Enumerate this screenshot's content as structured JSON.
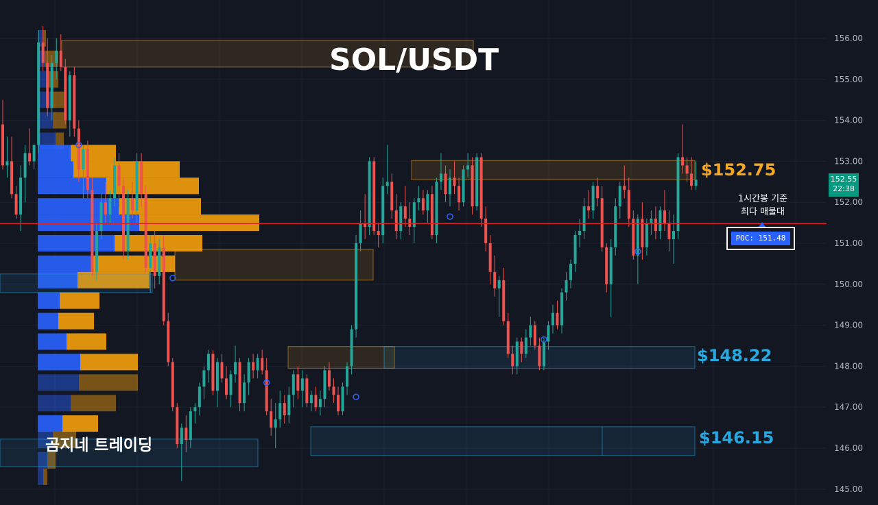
{
  "header": {
    "title": "SOL/USDT"
  },
  "watermark": "곰지네 트레이딩",
  "annotations": {
    "resistance_label": "$152.75",
    "support1_label": "$148.22",
    "support2_label": "$146.15",
    "note_line1": "1시간봉 기준",
    "note_line2": "최다 매물대",
    "poc_label": "POC: 151.48"
  },
  "price_tag": {
    "price": "152.55",
    "countdown": "22:38"
  },
  "colors": {
    "background": "#131722",
    "up": "#26a69a",
    "down": "#ef5350",
    "poc_line": "#e02020",
    "profile_buy": "#2962ff",
    "profile_sell": "#f59e0b",
    "level_orange": "#f5a623",
    "level_blue": "#29a8e0"
  },
  "chart_data": {
    "type": "candlestick",
    "title": "SOL/USDT",
    "timeframe": "1시간봉",
    "yaxis": {
      "position": "right",
      "ylim": [
        144.8,
        156.4
      ],
      "ticks": [
        "145.00",
        "146.00",
        "147.00",
        "148.00",
        "149.00",
        "150.00",
        "151.00",
        "152.00",
        "153.00",
        "154.00",
        "155.00",
        "156.00"
      ]
    },
    "grid": true,
    "current_price": 152.55,
    "poc": 151.48,
    "levels": [
      152.75,
      148.22,
      146.15
    ],
    "candles": [
      [
        153.9,
        154.5,
        152.8,
        152.9
      ],
      [
        152.9,
        153.6,
        152.6,
        153.0
      ],
      [
        153.0,
        153.6,
        152.1,
        152.2
      ],
      [
        152.2,
        152.4,
        151.6,
        151.7
      ],
      [
        151.7,
        152.9,
        151.3,
        152.6
      ],
      [
        152.6,
        153.4,
        152.0,
        153.2
      ],
      [
        153.2,
        153.8,
        152.9,
        153.0
      ],
      [
        153.0,
        153.4,
        152.8,
        153.4
      ],
      [
        153.4,
        156.2,
        153.2,
        155.9
      ],
      [
        155.9,
        156.3,
        155.2,
        155.4
      ],
      [
        155.4,
        156.0,
        154.1,
        154.3
      ],
      [
        154.3,
        155.6,
        154.0,
        155.4
      ],
      [
        155.4,
        156.0,
        155.0,
        155.7
      ],
      [
        155.7,
        156.1,
        155.2,
        155.3
      ],
      [
        155.3,
        155.5,
        153.9,
        154.0
      ],
      [
        154.0,
        155.2,
        153.6,
        155.1
      ],
      [
        155.1,
        155.3,
        153.6,
        153.8
      ],
      [
        153.8,
        154.0,
        152.5,
        152.8
      ],
      [
        152.8,
        153.4,
        152.1,
        153.3
      ],
      [
        153.3,
        153.5,
        152.1,
        152.3
      ],
      [
        152.3,
        152.6,
        150.2,
        150.3
      ],
      [
        150.3,
        151.5,
        150.1,
        151.3
      ],
      [
        151.3,
        152.2,
        151.1,
        152.0
      ],
      [
        152.0,
        152.5,
        151.5,
        151.7
      ],
      [
        151.7,
        152.3,
        151.5,
        152.1
      ],
      [
        152.1,
        153.1,
        151.9,
        152.9
      ],
      [
        152.9,
        153.2,
        151.9,
        152.4
      ],
      [
        152.4,
        152.6,
        150.6,
        150.8
      ],
      [
        150.8,
        152.3,
        150.6,
        152.1
      ],
      [
        152.1,
        152.5,
        151.6,
        151.8
      ],
      [
        151.8,
        153.2,
        151.5,
        153.0
      ],
      [
        153.0,
        153.2,
        151.9,
        152.2
      ],
      [
        152.2,
        152.4,
        150.3,
        150.4
      ],
      [
        150.4,
        151.2,
        149.8,
        151.0
      ],
      [
        151.0,
        151.3,
        149.9,
        150.2
      ],
      [
        150.2,
        151.1,
        150.0,
        150.9
      ],
      [
        150.9,
        151.2,
        149.0,
        149.1
      ],
      [
        149.1,
        149.3,
        148.0,
        148.1
      ],
      [
        148.1,
        148.2,
        146.9,
        147.0
      ],
      [
        147.0,
        147.1,
        146.0,
        146.1
      ],
      [
        146.1,
        146.6,
        145.2,
        146.5
      ],
      [
        146.5,
        146.8,
        145.9,
        146.2
      ],
      [
        146.2,
        147.0,
        146.0,
        146.9
      ],
      [
        146.9,
        147.1,
        146.6,
        147.0
      ],
      [
        147.0,
        147.6,
        146.8,
        147.5
      ],
      [
        147.5,
        148.0,
        147.2,
        147.9
      ],
      [
        147.9,
        148.4,
        147.6,
        148.3
      ],
      [
        148.3,
        148.4,
        147.3,
        147.4
      ],
      [
        147.4,
        148.2,
        147.0,
        148.1
      ],
      [
        148.1,
        148.3,
        147.6,
        147.7
      ],
      [
        147.7,
        148.0,
        147.2,
        147.3
      ],
      [
        147.3,
        147.9,
        147.0,
        147.8
      ],
      [
        147.8,
        148.5,
        147.6,
        148.1
      ],
      [
        148.1,
        148.2,
        146.9,
        147.1
      ],
      [
        147.1,
        147.8,
        146.9,
        147.6
      ],
      [
        147.6,
        148.2,
        147.3,
        148.1
      ],
      [
        148.1,
        148.3,
        147.7,
        147.9
      ],
      [
        147.9,
        148.3,
        147.7,
        148.2
      ],
      [
        148.2,
        148.4,
        147.8,
        147.9
      ],
      [
        147.9,
        148.2,
        146.8,
        146.9
      ],
      [
        146.9,
        147.2,
        146.3,
        146.5
      ],
      [
        146.5,
        147.1,
        146.0,
        146.7
      ],
      [
        146.7,
        147.4,
        146.5,
        147.1
      ],
      [
        147.1,
        147.3,
        146.6,
        146.8
      ],
      [
        146.8,
        147.5,
        146.6,
        147.3
      ],
      [
        147.3,
        147.9,
        147.0,
        147.8
      ],
      [
        147.8,
        148.0,
        147.2,
        147.4
      ],
      [
        147.4,
        147.9,
        147.0,
        147.7
      ],
      [
        147.7,
        147.8,
        147.0,
        147.1
      ],
      [
        147.1,
        147.4,
        146.9,
        147.3
      ],
      [
        147.3,
        147.5,
        146.9,
        147.0
      ],
      [
        147.0,
        147.4,
        146.8,
        147.2
      ],
      [
        147.2,
        148.0,
        147.0,
        147.9
      ],
      [
        147.9,
        148.1,
        147.4,
        147.5
      ],
      [
        147.5,
        147.7,
        147.1,
        147.3
      ],
      [
        147.3,
        147.5,
        146.8,
        146.9
      ],
      [
        146.9,
        147.6,
        146.8,
        147.5
      ],
      [
        147.5,
        148.1,
        147.3,
        148.0
      ],
      [
        148.0,
        149.0,
        147.8,
        148.9
      ],
      [
        148.9,
        151.2,
        148.7,
        151.0
      ],
      [
        151.0,
        151.8,
        150.8,
        151.5
      ],
      [
        151.5,
        152.2,
        151.1,
        151.4
      ],
      [
        151.4,
        153.1,
        151.2,
        153.0
      ],
      [
        153.0,
        153.1,
        151.2,
        151.3
      ],
      [
        151.3,
        151.5,
        150.9,
        151.2
      ],
      [
        151.2,
        152.6,
        151.0,
        152.4
      ],
      [
        152.4,
        153.4,
        152.2,
        152.5
      ],
      [
        152.5,
        152.7,
        151.6,
        151.8
      ],
      [
        151.8,
        152.2,
        151.1,
        151.3
      ],
      [
        151.3,
        152.0,
        151.1,
        151.9
      ],
      [
        151.9,
        152.4,
        151.4,
        151.6
      ],
      [
        151.6,
        152.0,
        151.2,
        151.4
      ],
      [
        151.4,
        152.1,
        151.0,
        152.0
      ],
      [
        152.0,
        152.4,
        151.8,
        152.1
      ],
      [
        152.1,
        152.3,
        151.7,
        151.8
      ],
      [
        151.8,
        152.3,
        151.5,
        152.2
      ],
      [
        152.2,
        152.4,
        151.1,
        151.2
      ],
      [
        151.2,
        152.6,
        151.0,
        152.5
      ],
      [
        152.5,
        153.2,
        152.3,
        152.7
      ],
      [
        152.7,
        152.9,
        152.0,
        152.2
      ],
      [
        152.2,
        152.8,
        151.9,
        152.6
      ],
      [
        152.6,
        153.0,
        152.2,
        152.4
      ],
      [
        152.4,
        152.6,
        151.8,
        152.0
      ],
      [
        152.0,
        152.9,
        151.9,
        152.8
      ],
      [
        152.8,
        153.2,
        152.6,
        152.9
      ],
      [
        152.9,
        153.1,
        151.7,
        151.9
      ],
      [
        151.9,
        153.2,
        151.8,
        153.1
      ],
      [
        153.1,
        153.2,
        151.4,
        151.6
      ],
      [
        151.6,
        151.9,
        150.8,
        151.0
      ],
      [
        151.0,
        151.2,
        150.0,
        150.3
      ],
      [
        150.3,
        150.7,
        149.7,
        149.9
      ],
      [
        149.9,
        150.2,
        149.2,
        150.1
      ],
      [
        150.1,
        150.4,
        149.0,
        149.1
      ],
      [
        149.1,
        149.3,
        148.2,
        148.3
      ],
      [
        148.3,
        148.5,
        147.8,
        148.0
      ],
      [
        148.0,
        148.7,
        147.8,
        148.6
      ],
      [
        148.6,
        148.7,
        148.1,
        148.3
      ],
      [
        148.3,
        148.9,
        148.2,
        148.7
      ],
      [
        148.7,
        149.2,
        148.5,
        149.0
      ],
      [
        149.0,
        149.1,
        148.4,
        148.5
      ],
      [
        148.5,
        148.7,
        147.9,
        148.0
      ],
      [
        148.0,
        148.7,
        147.9,
        148.6
      ],
      [
        148.6,
        149.1,
        148.4,
        149.0
      ],
      [
        149.0,
        149.5,
        148.8,
        149.3
      ],
      [
        149.3,
        149.6,
        148.9,
        149.0
      ],
      [
        149.0,
        149.9,
        148.8,
        149.8
      ],
      [
        149.8,
        150.3,
        149.6,
        150.1
      ],
      [
        150.1,
        150.6,
        149.9,
        150.5
      ],
      [
        150.5,
        151.3,
        150.3,
        151.2
      ],
      [
        151.2,
        151.6,
        150.9,
        151.3
      ],
      [
        151.3,
        152.1,
        151.1,
        151.9
      ],
      [
        151.9,
        152.3,
        151.6,
        151.8
      ],
      [
        151.8,
        152.5,
        151.6,
        152.4
      ],
      [
        152.4,
        152.6,
        151.9,
        152.1
      ],
      [
        152.1,
        152.4,
        150.8,
        150.9
      ],
      [
        150.9,
        151.0,
        149.8,
        150.0
      ],
      [
        150.0,
        151.1,
        149.2,
        150.9
      ],
      [
        150.9,
        152.1,
        150.7,
        151.9
      ],
      [
        151.9,
        152.5,
        151.6,
        152.4
      ],
      [
        152.4,
        152.9,
        152.1,
        152.3
      ],
      [
        152.3,
        152.6,
        151.4,
        151.6
      ],
      [
        151.6,
        151.8,
        150.6,
        150.7
      ],
      [
        150.7,
        151.7,
        150.0,
        151.6
      ],
      [
        151.6,
        152.0,
        150.6,
        150.9
      ],
      [
        150.9,
        151.6,
        150.7,
        151.5
      ],
      [
        151.5,
        151.8,
        151.2,
        151.6
      ],
      [
        151.6,
        151.9,
        151.1,
        151.3
      ],
      [
        151.3,
        151.9,
        151.1,
        151.8
      ],
      [
        151.8,
        152.3,
        151.3,
        151.5
      ],
      [
        151.5,
        151.8,
        150.8,
        151.1
      ],
      [
        151.1,
        151.7,
        150.5,
        151.3
      ],
      [
        151.3,
        153.2,
        151.1,
        153.1
      ],
      [
        153.1,
        153.9,
        152.7,
        152.9
      ],
      [
        152.9,
        153.1,
        152.5,
        152.7
      ],
      [
        152.7,
        153.1,
        152.3,
        152.4
      ],
      [
        152.4,
        153.0,
        152.3,
        152.55
      ]
    ],
    "volume_profile": [
      {
        "price": 156.0,
        "buy": 8,
        "sell": 4
      },
      {
        "price": 155.5,
        "buy": 10,
        "sell": 20
      },
      {
        "price": 155.0,
        "buy": 12,
        "sell": 18
      },
      {
        "price": 154.5,
        "buy": 18,
        "sell": 24
      },
      {
        "price": 154.0,
        "buy": 22,
        "sell": 20
      },
      {
        "price": 153.5,
        "buy": 26,
        "sell": 12
      },
      {
        "price": 153.2,
        "buy": 48,
        "sell": 66
      },
      {
        "price": 152.8,
        "buy": 52,
        "sell": 155
      },
      {
        "price": 152.4,
        "buy": 100,
        "sell": 135
      },
      {
        "price": 151.9,
        "buy": 118,
        "sell": 120
      },
      {
        "price": 151.5,
        "buy": 148,
        "sell": 175
      },
      {
        "price": 151.0,
        "buy": 112,
        "sell": 128
      },
      {
        "price": 150.5,
        "buy": 80,
        "sell": 120
      },
      {
        "price": 150.1,
        "buy": 58,
        "sell": 105
      },
      {
        "price": 149.6,
        "buy": 32,
        "sell": 58
      },
      {
        "price": 149.1,
        "buy": 30,
        "sell": 52
      },
      {
        "price": 148.6,
        "buy": 42,
        "sell": 58
      },
      {
        "price": 148.1,
        "buy": 62,
        "sell": 84
      },
      {
        "price": 147.6,
        "buy": 60,
        "sell": 86
      },
      {
        "price": 147.1,
        "buy": 48,
        "sell": 66
      },
      {
        "price": 146.6,
        "buy": 36,
        "sell": 52
      },
      {
        "price": 146.2,
        "buy": 22,
        "sell": 34
      },
      {
        "price": 145.7,
        "buy": 14,
        "sell": 12
      },
      {
        "price": 145.3,
        "buy": 8,
        "sell": 6
      }
    ],
    "zones": [
      {
        "price_low": 155.3,
        "price_high": 155.95,
        "color": "orange"
      },
      {
        "price_low": 152.55,
        "price_high": 153.02,
        "color": "orange"
      },
      {
        "price_low": 150.1,
        "price_high": 150.85,
        "color": "orange"
      },
      {
        "price_low": 147.95,
        "price_high": 148.48,
        "color": "orange"
      },
      {
        "price_low": 147.95,
        "price_high": 148.48,
        "color": "blue"
      },
      {
        "price_low": 145.82,
        "price_high": 146.52,
        "color": "blue"
      },
      {
        "price_low": 145.55,
        "price_high": 146.22,
        "color": "blue"
      },
      {
        "price_low": 149.8,
        "price_high": 150.25,
        "color": "blue"
      }
    ]
  }
}
